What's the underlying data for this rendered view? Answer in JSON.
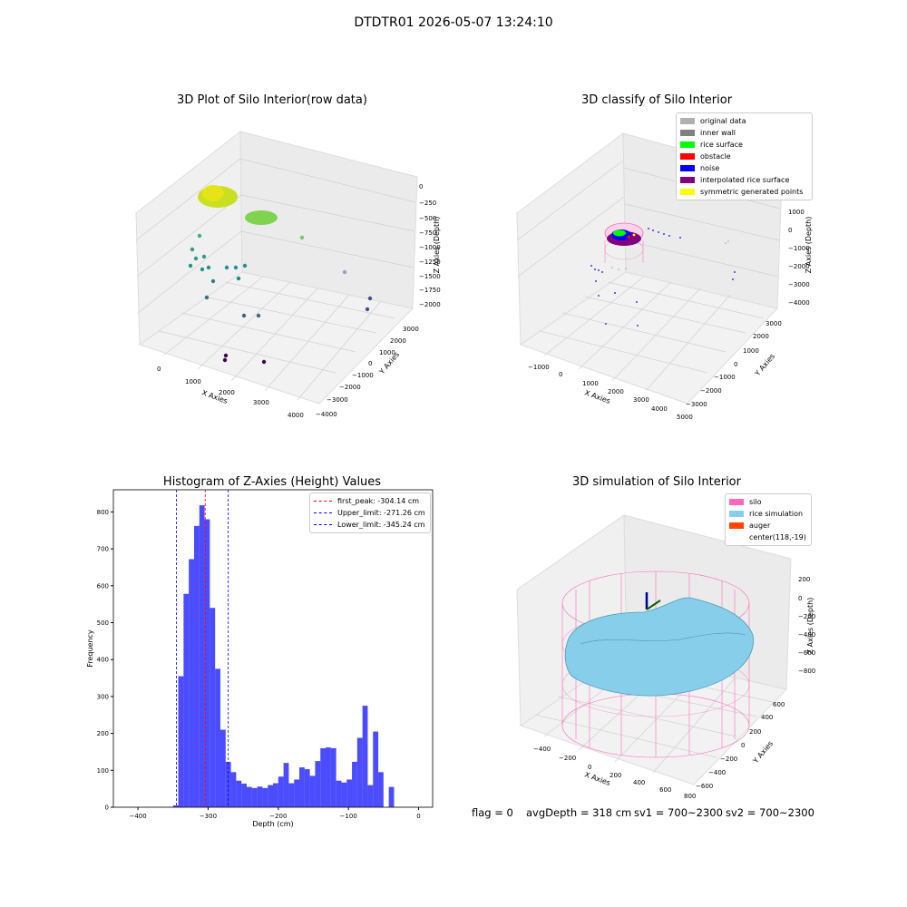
{
  "suptitle": "DTDTR01 2026-05-07 13:24:10",
  "footer": {
    "flag": "flag = 0",
    "avg_depth": "avgDepth = 318 cm",
    "sv1": "sv1 = 700~2300",
    "sv2": "sv2 = 700~2300"
  },
  "panels": {
    "raw": {
      "title": "3D Plot of Silo Interior(row data)",
      "xlabel": "X Axies",
      "ylabel": "Y Axies",
      "zlabel": "Z Axies (Depth)",
      "xticks": [
        "0",
        "1000",
        "2000",
        "3000",
        "4000"
      ],
      "yticks": [
        "3000",
        "2000",
        "1000",
        "0",
        "−1000",
        "−2000",
        "−3000",
        "−4000"
      ],
      "zticks": [
        "0",
        "−250",
        "−500",
        "−750",
        "−1000",
        "−1250",
        "−1500",
        "−1750",
        "−2000"
      ]
    },
    "classify": {
      "title": "3D classify of Silo Interior",
      "xlabel": "X Axies",
      "ylabel": "Y Axies",
      "zlabel": "Z Axies (Depth)",
      "xticks": [
        "−1000",
        "0",
        "1000",
        "2000",
        "3000",
        "4000",
        "5000"
      ],
      "yticks": [
        "3000",
        "2000",
        "1000",
        "0",
        "−1000",
        "−2000",
        "−3000"
      ],
      "zticks": [
        "2000",
        "1000",
        "0",
        "−1000",
        "−2000",
        "−3000",
        "−4000"
      ],
      "legend": [
        {
          "label": "original data",
          "color": "#b0b0b0"
        },
        {
          "label": "inner wall",
          "color": "#808080"
        },
        {
          "label": "rice surface",
          "color": "#00ff00"
        },
        {
          "label": "obstacle",
          "color": "#ff0000"
        },
        {
          "label": "noise",
          "color": "#0000ff"
        },
        {
          "label": "interpolated rice surface",
          "color": "#800080"
        },
        {
          "label": "symmetric generated points",
          "color": "#ffff00"
        }
      ]
    },
    "simulation": {
      "title": "3D simulation of Silo Interior",
      "xlabel": "X Axies",
      "ylabel": "Y Axies",
      "zlabel": "Z Axies (Depth)",
      "xticks": [
        "−400",
        "−200",
        "0",
        "200",
        "400",
        "600",
        "800"
      ],
      "yticks": [
        "600",
        "400",
        "200",
        "0",
        "−200",
        "−400",
        "−600"
      ],
      "zticks": [
        "200",
        "0",
        "−200",
        "−400",
        "−600",
        "−800"
      ],
      "legend": [
        {
          "label": "silo",
          "color": "#ff69b4"
        },
        {
          "label": "rice simulation",
          "color": "#87ceeb"
        },
        {
          "label": "auger",
          "color": "#ff4500"
        },
        {
          "label": "center(118,-19)",
          "color": ""
        }
      ]
    }
  },
  "chart_data": {
    "type": "bar",
    "title": "Histogram of Z-Axies (Height) Values",
    "xlabel": "Depth (cm)",
    "ylabel": "Frequency",
    "xlim": [
      -435,
      20
    ],
    "ylim": [
      0,
      860
    ],
    "xticks": [
      -400,
      -300,
      -200,
      -100,
      0
    ],
    "yticks": [
      0,
      100,
      200,
      300,
      400,
      500,
      600,
      700,
      800
    ],
    "bar_color": "#0000ff",
    "bins": [
      {
        "x0": -350,
        "x1": -342.5,
        "v": 5
      },
      {
        "x0": -342.5,
        "x1": -335,
        "v": 355
      },
      {
        "x0": -335,
        "x1": -327.5,
        "v": 578
      },
      {
        "x0": -327.5,
        "x1": -320,
        "v": 672
      },
      {
        "x0": -320,
        "x1": -312.5,
        "v": 762
      },
      {
        "x0": -312.5,
        "x1": -305,
        "v": 818
      },
      {
        "x0": -305,
        "x1": -297.5,
        "v": 780
      },
      {
        "x0": -297.5,
        "x1": -290,
        "v": 540
      },
      {
        "x0": -290,
        "x1": -282.5,
        "v": 375
      },
      {
        "x0": -282.5,
        "x1": -275,
        "v": 210
      },
      {
        "x0": -275,
        "x1": -267.5,
        "v": 123
      },
      {
        "x0": -267.5,
        "x1": -260,
        "v": 95
      },
      {
        "x0": -260,
        "x1": -252.5,
        "v": 72
      },
      {
        "x0": -252.5,
        "x1": -245,
        "v": 64
      },
      {
        "x0": -245,
        "x1": -237.5,
        "v": 55
      },
      {
        "x0": -237.5,
        "x1": -230,
        "v": 52
      },
      {
        "x0": -230,
        "x1": -222.5,
        "v": 56
      },
      {
        "x0": -222.5,
        "x1": -215,
        "v": 52
      },
      {
        "x0": -215,
        "x1": -207.5,
        "v": 60
      },
      {
        "x0": -207.5,
        "x1": -200,
        "v": 65
      },
      {
        "x0": -200,
        "x1": -192.5,
        "v": 83
      },
      {
        "x0": -192.5,
        "x1": -185,
        "v": 120
      },
      {
        "x0": -185,
        "x1": -177.5,
        "v": 65
      },
      {
        "x0": -177.5,
        "x1": -170,
        "v": 75
      },
      {
        "x0": -170,
        "x1": -162.5,
        "v": 108
      },
      {
        "x0": -162.5,
        "x1": -155,
        "v": 103
      },
      {
        "x0": -155,
        "x1": -147.5,
        "v": 85
      },
      {
        "x0": -147.5,
        "x1": -140,
        "v": 125
      },
      {
        "x0": -140,
        "x1": -132.5,
        "v": 160
      },
      {
        "x0": -132.5,
        "x1": -125,
        "v": 162
      },
      {
        "x0": -125,
        "x1": -117.5,
        "v": 160
      },
      {
        "x0": -117.5,
        "x1": -110,
        "v": 72
      },
      {
        "x0": -110,
        "x1": -102.5,
        "v": 67
      },
      {
        "x0": -102.5,
        "x1": -95,
        "v": 75
      },
      {
        "x0": -95,
        "x1": -87.5,
        "v": 123
      },
      {
        "x0": -87.5,
        "x1": -80,
        "v": 188
      },
      {
        "x0": -80,
        "x1": -72.5,
        "v": 275
      },
      {
        "x0": -72.5,
        "x1": -65,
        "v": 60
      },
      {
        "x0": -65,
        "x1": -57.5,
        "v": 205
      },
      {
        "x0": -57.5,
        "x1": -50,
        "v": 95
      },
      {
        "x0": -50,
        "x1": -42.5,
        "v": 0
      },
      {
        "x0": -42.5,
        "x1": -35,
        "v": 55
      }
    ],
    "vlines": [
      {
        "label": "first_peak: -304.14 cm",
        "x": -304.14,
        "color": "#ff0000"
      },
      {
        "label": "Upper_limit: -271.26 cm",
        "x": -271.26,
        "color": "#0000ff"
      },
      {
        "label": "Lower_limit: -345.24 cm",
        "x": -345.24,
        "color": "#0000ff"
      }
    ]
  }
}
